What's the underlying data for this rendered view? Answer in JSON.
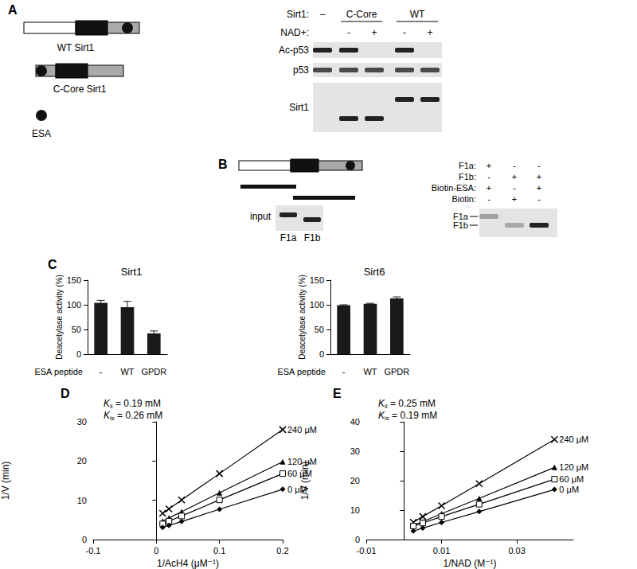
{
  "panel_labels": [
    "A",
    "B",
    "C",
    "D",
    "E"
  ],
  "panel_a": {
    "constructs": [
      {
        "label": "WT Sirt1"
      },
      {
        "label": "C-Core Sirt1"
      }
    ],
    "legend": "ESA",
    "blot": {
      "header": {
        "label": "Sirt1:",
        "groups": [
          {
            "label": "–",
            "lanes": 1
          },
          {
            "label": "C-Core",
            "lanes": 2
          },
          {
            "label": "WT",
            "lanes": 2
          }
        ]
      },
      "nad": {
        "label": "NAD+:",
        "lanes": [
          null,
          "-",
          "+",
          "-",
          "+"
        ]
      },
      "rows": [
        {
          "label": "Ac-p53",
          "bands": [
            1,
            1,
            0,
            1,
            0
          ]
        },
        {
          "label": "p53",
          "bands": [
            0.8,
            0.8,
            0.8,
            0.8,
            0.8
          ]
        },
        {
          "label": "Sirt1",
          "bands": [
            0,
            1,
            1,
            1,
            1
          ]
        }
      ]
    }
  },
  "panel_b": {
    "input": {
      "label": "input",
      "lanes": [
        "F1a",
        "F1b"
      ],
      "bands": [
        1,
        1
      ]
    },
    "pulldown": {
      "rows": [
        {
          "label": "F1a:",
          "lanes": [
            "+",
            "-",
            "-"
          ]
        },
        {
          "label": "F1b:",
          "lanes": [
            "-",
            "+",
            "+"
          ]
        },
        {
          "label": "Biotin-ESA:",
          "lanes": [
            "+",
            "-",
            "+"
          ]
        },
        {
          "label": "Biotin:",
          "lanes": [
            "-",
            "+",
            "-"
          ]
        }
      ],
      "bands": [
        {
          "label": "F1a",
          "values": [
            0.35,
            0,
            0
          ]
        },
        {
          "label": "F1b",
          "values": [
            0,
            0.3,
            1
          ]
        }
      ]
    }
  },
  "chart_data": [
    {
      "type": "bar",
      "title": "Sirt1",
      "categories": [
        "-",
        "WT",
        "GPDR"
      ],
      "values": [
        104,
        95,
        42
      ],
      "errors": [
        5,
        12,
        5
      ],
      "xlabel": "ESA peptide",
      "ylabel": "Deacetylase activity (%)",
      "ylim": [
        0,
        150
      ],
      "yticks": [
        0,
        50,
        100,
        150
      ],
      "color": "#1a1a1a",
      "grid": false
    },
    {
      "type": "bar",
      "title": "Sirt6",
      "categories": [
        "-",
        "WT",
        "GPDR"
      ],
      "values": [
        99,
        102,
        113
      ],
      "errors": [
        1,
        1,
        3
      ],
      "xlabel": "ESA peptide",
      "ylabel": "Deacetylase activity (%)",
      "ylim": [
        0,
        150
      ],
      "yticks": [
        0,
        50,
        100,
        150
      ],
      "color": "#1a1a1a",
      "grid": false
    },
    {
      "type": "line",
      "x": [
        0.01,
        0.02,
        0.04,
        0.1,
        0.2
      ],
      "series": [
        {
          "name": "240 μM",
          "marker": "x",
          "values": [
            6.7,
            7.8,
            10.1,
            16.8,
            28.0
          ]
        },
        {
          "name": "120 μM",
          "marker": "triangle",
          "values": [
            4.7,
            5.5,
            7.1,
            11.9,
            19.8
          ]
        },
        {
          "name": "60 μM",
          "marker": "open-square",
          "values": [
            4.0,
            4.7,
            6.0,
            10.1,
            16.8
          ]
        },
        {
          "name": "0 μM",
          "marker": "diamond",
          "values": [
            3.1,
            3.6,
            4.6,
            7.7,
            12.8
          ]
        }
      ],
      "xlabel": "1/AcH4 (μM⁻¹)",
      "ylabel": "1/V (min)",
      "xlim": [
        -0.1,
        0.2
      ],
      "xticks": [
        -0.1,
        0,
        0.1,
        0.2
      ],
      "ylim": [
        0,
        30
      ],
      "yticks": [
        0,
        10,
        20,
        30
      ],
      "annotations": [
        {
          "symbol": "K",
          "subscript": "ii",
          "text": " = 0.19 mM"
        },
        {
          "symbol": "K",
          "subscript": "is",
          "text": " = 0.26 mM"
        }
      ],
      "color": "#000000",
      "line_style": "solid",
      "grid": false
    },
    {
      "type": "line",
      "x": [
        0.0025,
        0.005,
        0.01,
        0.02,
        0.04
      ],
      "series": [
        {
          "name": "240 μM",
          "marker": "x",
          "values": [
            5.9,
            7.8,
            11.5,
            19.0,
            34.0
          ]
        },
        {
          "name": "120 μM",
          "marker": "triangle",
          "values": [
            4.8,
            6.1,
            8.8,
            14.0,
            24.5
          ]
        },
        {
          "name": "60 μM",
          "marker": "open-square",
          "values": [
            4.6,
            5.6,
            7.8,
            12.0,
            20.5
          ]
        },
        {
          "name": "0 μM",
          "marker": "diamond",
          "values": [
            2.9,
            3.9,
            5.8,
            9.5,
            17.0
          ]
        }
      ],
      "xlabel": "1/NAD (M⁻¹)",
      "ylabel": "1/V (min)",
      "xlim": [
        -0.01,
        0.045
      ],
      "xticks": [
        -0.01,
        0.01,
        0.03
      ],
      "ylim": [
        0,
        40
      ],
      "yticks": [
        0,
        10,
        20,
        30,
        40
      ],
      "annotations": [
        {
          "symbol": "K",
          "subscript": "ii",
          "text": " = 0.25 mM"
        },
        {
          "symbol": "K",
          "subscript": "is",
          "text": " = 0.19 mM"
        }
      ],
      "color": "#000000",
      "line_style": "solid",
      "grid": false
    }
  ]
}
